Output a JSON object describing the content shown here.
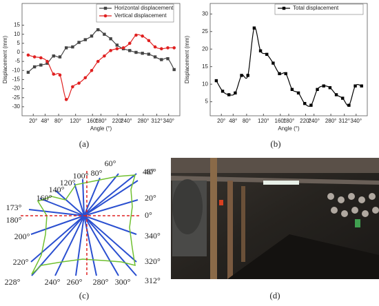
{
  "chart_data": [
    {
      "type": "line",
      "caption": "(a)",
      "x_label": "Angle (°)",
      "y_label": "Displacement (mm)",
      "x": [
        8,
        23,
        38,
        53,
        68,
        83,
        98,
        113,
        128,
        143,
        158,
        173,
        188,
        203,
        218,
        233,
        248,
        263,
        278,
        293,
        308,
        323,
        338,
        353
      ],
      "xlim": [
        0,
        360
      ],
      "xticks": [
        {
          "value": 20,
          "label": "20°"
        },
        {
          "value": 48,
          "label": "48°"
        },
        {
          "value": 80,
          "label": "80°"
        },
        {
          "value": 120,
          "label": "120°"
        },
        {
          "value": 160,
          "label": "160°"
        },
        {
          "value": 180,
          "label": "180°"
        },
        {
          "value": 220,
          "label": "220°"
        },
        {
          "value": 240,
          "label": "240°"
        },
        {
          "value": 280,
          "label": "280°"
        },
        {
          "value": 312,
          "label": "312°"
        },
        {
          "value": 340,
          "label": "340°"
        }
      ],
      "ylim": [
        -35,
        27
      ],
      "yticks": [
        -30,
        -25,
        -20,
        -15,
        -10,
        -5,
        0,
        5,
        10,
        15
      ],
      "legend": "top",
      "series": [
        {
          "name": "Horizontal displacement",
          "color": "#444444",
          "marker": "square",
          "values": [
            -11,
            -8,
            -7,
            -6,
            -2,
            -2.5,
            2.5,
            3,
            5.5,
            7,
            9,
            12.5,
            10,
            7.5,
            4,
            2,
            1,
            0,
            -0.5,
            -1,
            -2.5,
            -4,
            -3.5,
            -9.5
          ]
        },
        {
          "name": "Vertical displacement",
          "color": "#e02020",
          "marker": "circle",
          "values": [
            -1.5,
            -2.5,
            -3,
            -5,
            -12,
            -12.5,
            -26,
            -19,
            -17,
            -14,
            -10,
            -5,
            -2,
            1,
            2,
            2.5,
            5,
            9.5,
            9,
            6.5,
            3,
            2,
            2.5,
            2.5
          ]
        }
      ]
    },
    {
      "type": "line",
      "caption": "(b)",
      "x_label": "Angle (°)",
      "y_label": "Displacement (mm)",
      "x": [
        8,
        23,
        38,
        53,
        68,
        83,
        98,
        113,
        128,
        143,
        158,
        173,
        188,
        203,
        218,
        233,
        248,
        263,
        278,
        293,
        308,
        323,
        338,
        353
      ],
      "xlim": [
        0,
        360
      ],
      "xticks": [
        {
          "value": 20,
          "label": "20°"
        },
        {
          "value": 48,
          "label": "48°"
        },
        {
          "value": 80,
          "label": "80°"
        },
        {
          "value": 120,
          "label": "120°"
        },
        {
          "value": 160,
          "label": "160°"
        },
        {
          "value": 180,
          "label": "180°"
        },
        {
          "value": 220,
          "label": "220°"
        },
        {
          "value": 240,
          "label": "240°"
        },
        {
          "value": 280,
          "label": "280°"
        },
        {
          "value": 312,
          "label": "312°"
        },
        {
          "value": 340,
          "label": "340°"
        }
      ],
      "ylim": [
        1,
        33
      ],
      "yticks": [
        5,
        10,
        15,
        20,
        25,
        30
      ],
      "legend": "top-right",
      "series": [
        {
          "name": "Total displacement",
          "color": "#000000",
          "marker": "square",
          "values": [
            11,
            8,
            7,
            7.5,
            12.5,
            12.5,
            26,
            19.5,
            18.5,
            16,
            13,
            13,
            8.5,
            7.5,
            4.5,
            4,
            8.5,
            9.5,
            9,
            7,
            6,
            4,
            9.5,
            9.5
          ]
        }
      ]
    }
  ],
  "diagram": {
    "caption": "(c)",
    "labels": [
      "48°",
      "60°",
      "80°",
      "100°",
      "120°",
      "140°",
      "160°",
      "173°",
      "180°",
      "0°",
      "20°",
      "40°",
      "200°",
      "220°",
      "228°",
      "240°",
      "260°",
      "280°",
      "300°",
      "312°",
      "320°",
      "340°"
    ]
  },
  "photo": {
    "caption": "(d)"
  }
}
